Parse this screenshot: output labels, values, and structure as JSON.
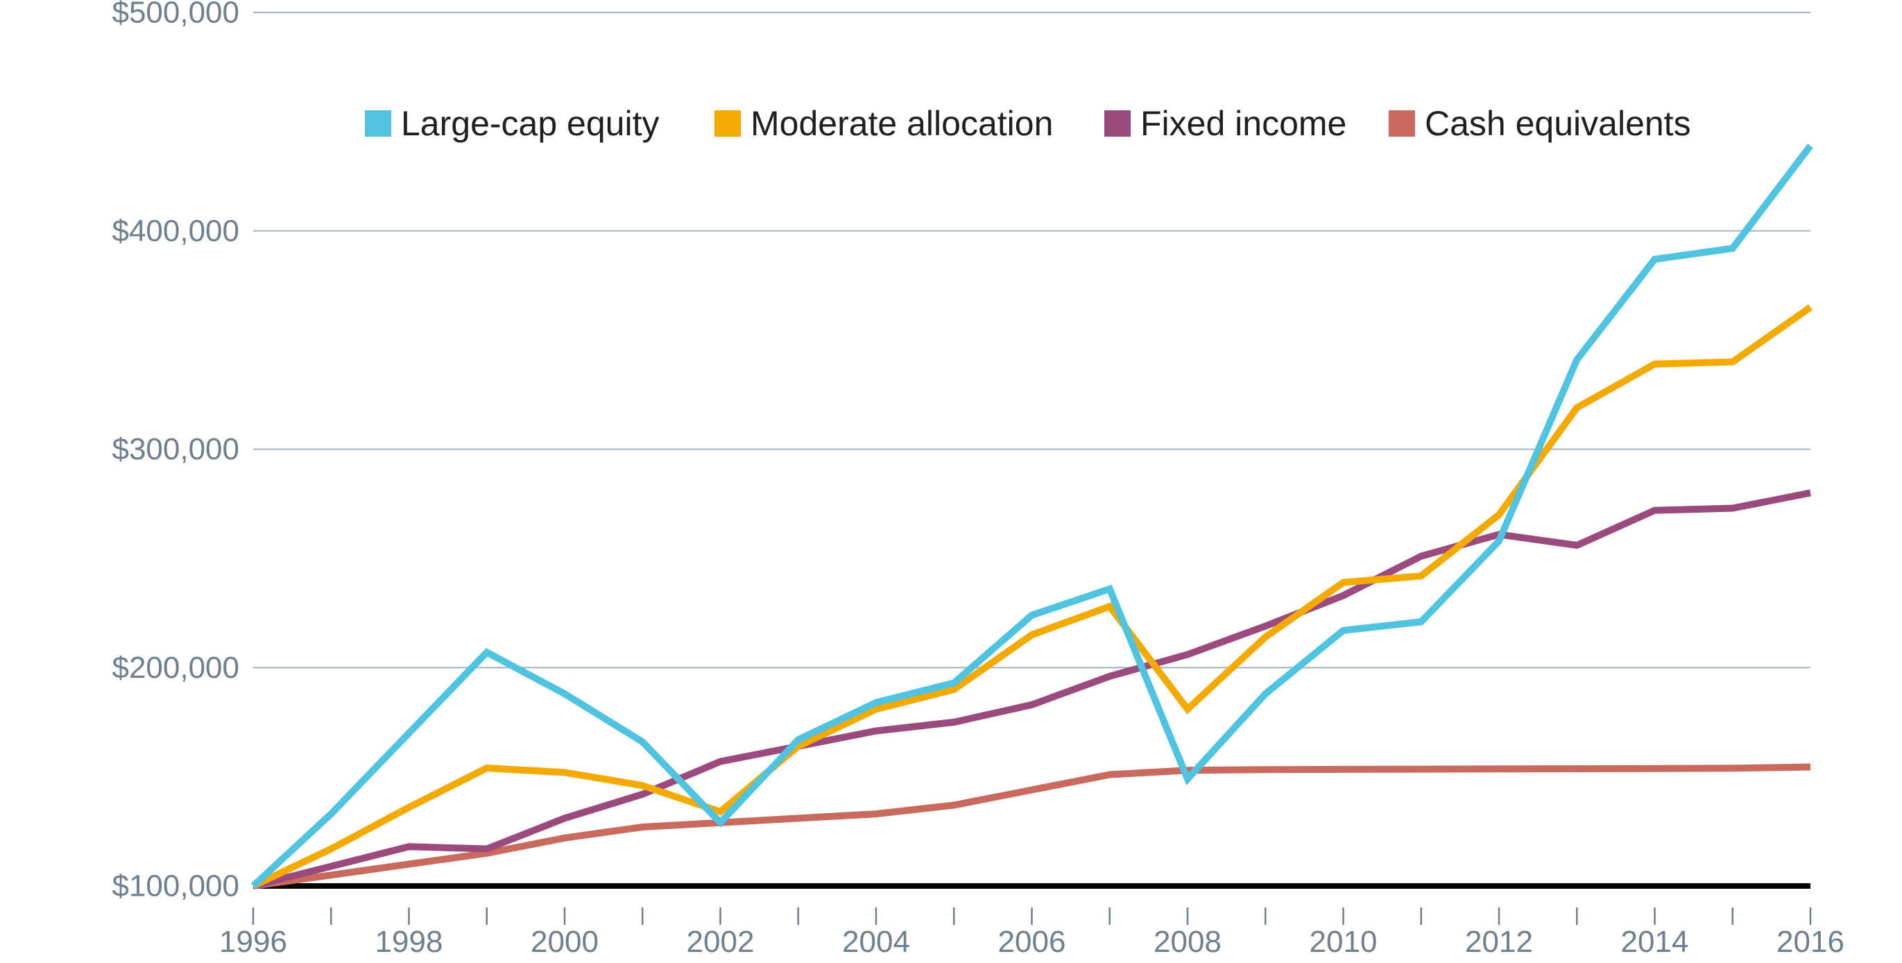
{
  "chart_data": {
    "type": "line",
    "title": "",
    "xlabel": "",
    "ylabel": "",
    "x": [
      1996,
      1997,
      1998,
      1999,
      2000,
      2001,
      2002,
      2003,
      2004,
      2005,
      2006,
      2007,
      2008,
      2009,
      2010,
      2011,
      2012,
      2013,
      2014,
      2015,
      2016
    ],
    "xlim": [
      1996,
      2016
    ],
    "ylim": [
      100000,
      500000
    ],
    "x_tick_labels": [
      "1996",
      "1998",
      "2000",
      "2002",
      "2004",
      "2006",
      "2008",
      "2010",
      "2012",
      "2014",
      "2016"
    ],
    "y_tick_labels": [
      "$100,000",
      "$200,000",
      "$300,000",
      "$400,000",
      "$500,000"
    ],
    "grid": true,
    "legend_position": "top",
    "series": [
      {
        "name": "Large-cap equity",
        "color": "#4fc3df",
        "values": [
          100000,
          133000,
          170000,
          207000,
          188000,
          166000,
          129000,
          167000,
          184000,
          193000,
          224000,
          236000,
          149000,
          188000,
          217000,
          221000,
          258000,
          341000,
          387000,
          392000,
          439000
        ]
      },
      {
        "name": "Moderate allocation",
        "color": "#f2a900",
        "values": [
          100000,
          117000,
          136000,
          154000,
          152000,
          146000,
          134000,
          164000,
          181000,
          190000,
          215000,
          228000,
          181000,
          214000,
          239000,
          242000,
          270000,
          319000,
          339000,
          340000,
          365000
        ]
      },
      {
        "name": "Fixed income",
        "color": "#9b4a7d",
        "values": [
          100000,
          109000,
          118000,
          117000,
          131000,
          142000,
          157000,
          164000,
          171000,
          175000,
          183000,
          196000,
          206000,
          219000,
          233000,
          251000,
          261000,
          256000,
          272000,
          273000,
          280000
        ]
      },
      {
        "name": "Cash equivalents",
        "color": "#c96a5e",
        "values": [
          100000,
          105000,
          110000,
          115000,
          122000,
          127000,
          129000,
          131000,
          133000,
          137000,
          144000,
          151000,
          153000,
          153300,
          153400,
          153500,
          153600,
          153700,
          153800,
          153900,
          154500
        ]
      }
    ]
  }
}
